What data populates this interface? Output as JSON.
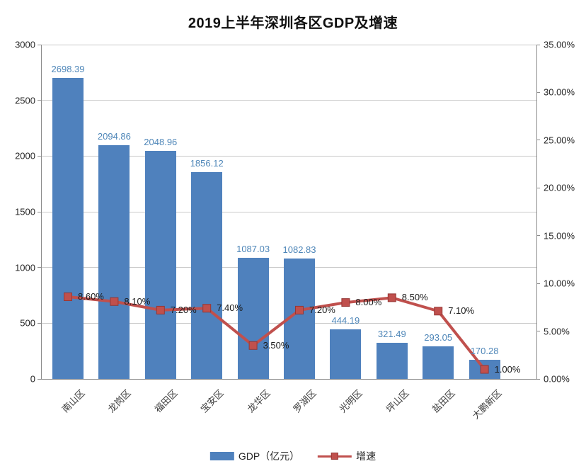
{
  "title": "2019上半年深圳各区GDP及增速",
  "chart_data": {
    "type": "combo-bar-line",
    "title": "2019上半年深圳各区GDP及增速",
    "categories": [
      "南山区",
      "龙岗区",
      "福田区",
      "宝安区",
      "龙华区",
      "罗湖区",
      "光明区",
      "坪山区",
      "盐田区",
      "大鹏新区"
    ],
    "series": [
      {
        "name": "GDP（亿元）",
        "type": "bar",
        "axis": "left",
        "color": "#4F81BD",
        "values": [
          2698.39,
          2094.86,
          2048.96,
          1856.12,
          1087.03,
          1082.83,
          444.19,
          321.49,
          293.05,
          170.28
        ],
        "data_labels": [
          "2698.39",
          "2094.86",
          "2048.96",
          "1856.12",
          "1087.03",
          "1082.83",
          "444.19",
          "321.49",
          "293.05",
          "170.28"
        ]
      },
      {
        "name": "增速",
        "type": "line",
        "axis": "right",
        "color": "#C0504D",
        "marker": "square",
        "values_percent": [
          8.6,
          8.1,
          7.2,
          7.4,
          3.5,
          7.2,
          8.0,
          8.5,
          7.1,
          1.0
        ],
        "data_labels": [
          "8.60%",
          "8.10%",
          "7.20%",
          "7.40%",
          "3.50%",
          "7.20%",
          "8.00%",
          "8.50%",
          "7.10%",
          "1.00%"
        ]
      }
    ],
    "left_axis": {
      "min": 0,
      "max": 3000,
      "step": 500,
      "tick_labels": [
        "0",
        "500",
        "1000",
        "1500",
        "2000",
        "2500",
        "3000"
      ]
    },
    "right_axis": {
      "min": 0,
      "max": 35,
      "step": 5,
      "tick_labels": [
        "0.00%",
        "5.00%",
        "10.00%",
        "15.00%",
        "20.00%",
        "25.00%",
        "30.00%",
        "35.00%"
      ]
    },
    "legend": {
      "position": "bottom",
      "entries": [
        "GDP（亿元）",
        "增速"
      ]
    },
    "grid": true
  },
  "colors": {
    "bar": "#4F81BD",
    "line": "#C0504D",
    "marker_border": "#953735",
    "bar_label": "#4E86B8",
    "grid": "#C9C9C9",
    "axis": "#8C8C8C",
    "tick_text": "#262626",
    "title_text": "#111111"
  }
}
